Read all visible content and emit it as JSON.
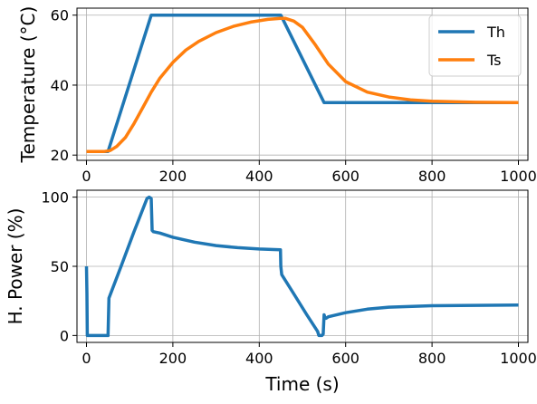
{
  "chart_data": [
    {
      "type": "line",
      "ylabel": "Temperature (°C)",
      "xlim": [
        -22,
        1022
      ],
      "ylim": [
        18.5,
        62
      ],
      "xticks": [
        0,
        200,
        400,
        600,
        800,
        1000
      ],
      "xticklabels": [
        "0",
        "200",
        "400",
        "600",
        "800",
        "1000"
      ],
      "yticks": [
        20,
        40,
        60
      ],
      "yticklabels": [
        "20",
        "40",
        "60"
      ],
      "grid": true,
      "legend": "top-right",
      "series": [
        {
          "name": "Th",
          "color": "#1f77b4",
          "x": [
            0,
            50,
            150,
            450,
            550,
            1000
          ],
          "y": [
            21,
            21,
            60,
            60,
            35,
            35
          ]
        },
        {
          "name": "Ts",
          "color": "#ff7f0e",
          "x": [
            0,
            40,
            55,
            70,
            90,
            110,
            130,
            150,
            170,
            200,
            230,
            260,
            300,
            340,
            380,
            420,
            450,
            460,
            480,
            500,
            530,
            560,
            600,
            650,
            700,
            750,
            800,
            900,
            1000
          ],
          "y": [
            21,
            21,
            21.3,
            22.5,
            25,
            29,
            33.5,
            38,
            42,
            46.5,
            50,
            52.5,
            55,
            56.8,
            58,
            58.8,
            59.1,
            59.1,
            58.3,
            56.5,
            51.5,
            46,
            41,
            38,
            36.6,
            35.8,
            35.4,
            35.1,
            35
          ]
        }
      ]
    },
    {
      "type": "line",
      "xlabel": "Time (s)",
      "ylabel": "H. Power (%)",
      "xlim": [
        -22,
        1022
      ],
      "ylim": [
        -5,
        105
      ],
      "xticks": [
        0,
        200,
        400,
        600,
        800,
        1000
      ],
      "xticklabels": [
        "0",
        "200",
        "400",
        "600",
        "800",
        "1000"
      ],
      "yticks": [
        0,
        50,
        100
      ],
      "yticklabels": [
        "0",
        "50",
        "100"
      ],
      "grid": true,
      "series": [
        {
          "color": "#1f77b4",
          "x": [
            0,
            1,
            2,
            49,
            50,
            52,
            80,
            110,
            140,
            145,
            150,
            152,
            155,
            170,
            200,
            250,
            300,
            350,
            400,
            449,
            450,
            452,
            480,
            510,
            535,
            538,
            540,
            545,
            548,
            550,
            552,
            555,
            560,
            600,
            650,
            700,
            800,
            900,
            1000
          ],
          "y": [
            50,
            30,
            0,
            0,
            0,
            27,
            50,
            75,
            99,
            100,
            99,
            76,
            75,
            74,
            71,
            67.5,
            65,
            63.5,
            62.5,
            62,
            50,
            44,
            30,
            15,
            3,
            0,
            0,
            0,
            1,
            15,
            13,
            12.5,
            13.5,
            16.5,
            19,
            20.5,
            21.5,
            21.8,
            22
          ]
        }
      ]
    }
  ]
}
